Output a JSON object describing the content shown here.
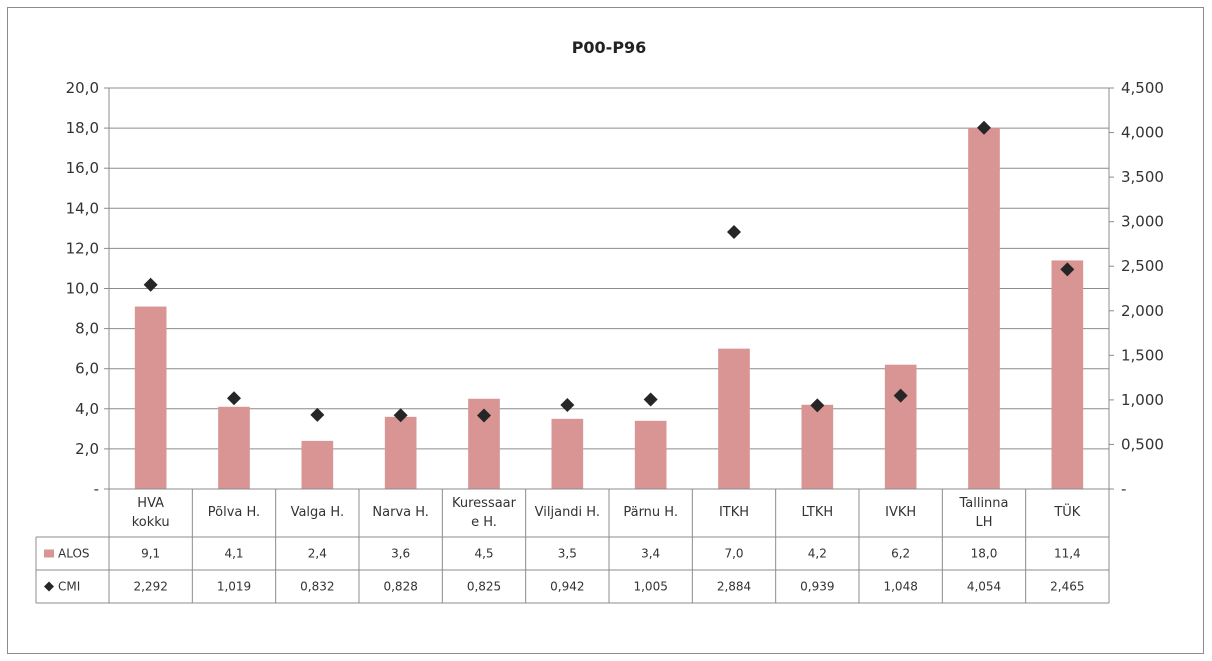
{
  "chart_data": {
    "type": "bar",
    "title": "P00-P96",
    "categories": [
      [
        "HVA",
        "kokku"
      ],
      [
        "Põlva H."
      ],
      [
        "Valga H."
      ],
      [
        "Narva H."
      ],
      [
        "Kuressaar",
        "e H."
      ],
      [
        "Viljandi H."
      ],
      [
        "Pärnu H."
      ],
      [
        "ITKH"
      ],
      [
        "LTKH"
      ],
      [
        "IVKH"
      ],
      [
        "Tallinna",
        "LH"
      ],
      [
        "TÜK"
      ]
    ],
    "series": [
      {
        "name": "ALOS",
        "type": "bar",
        "axis": "left",
        "color": "#d99594",
        "values": [
          9.1,
          4.1,
          2.4,
          3.6,
          4.5,
          3.5,
          3.4,
          7.0,
          4.2,
          6.2,
          18.0,
          11.4
        ],
        "labels": [
          "9,1",
          "4,1",
          "2,4",
          "3,6",
          "4,5",
          "3,5",
          "3,4",
          "7,0",
          "4,2",
          "6,2",
          "18,0",
          "11,4"
        ]
      },
      {
        "name": "CMI",
        "type": "scatter",
        "axis": "right",
        "color": "#262626",
        "values": [
          2.292,
          1.019,
          0.832,
          0.828,
          0.825,
          0.942,
          1.005,
          2.884,
          0.939,
          1.048,
          4.054,
          2.465
        ],
        "labels": [
          "2,292",
          "1,019",
          "0,832",
          "0,828",
          "0,825",
          "0,942",
          "1,005",
          "2,884",
          "0,939",
          "1,048",
          "4,054",
          "2,465"
        ]
      }
    ],
    "y_left": {
      "ylim": [
        0,
        20
      ],
      "ticks": [
        0,
        2,
        4,
        6,
        8,
        10,
        12,
        14,
        16,
        18,
        20
      ],
      "tick_labels": [
        "-",
        "2,0",
        "4,0",
        "6,0",
        "8,0",
        "10,0",
        "12,0",
        "14,0",
        "16,0",
        "18,0",
        "20,0"
      ]
    },
    "y_right": {
      "ylim": [
        0,
        4.5
      ],
      "ticks": [
        0,
        0.5,
        1,
        1.5,
        2,
        2.5,
        3,
        3.5,
        4,
        4.5
      ],
      "tick_labels": [
        "-",
        "0,500",
        "1,000",
        "1,500",
        "2,000",
        "2,500",
        "3,000",
        "3,500",
        "4,000",
        "4,500"
      ]
    },
    "grid": true,
    "legend": "data-table"
  }
}
